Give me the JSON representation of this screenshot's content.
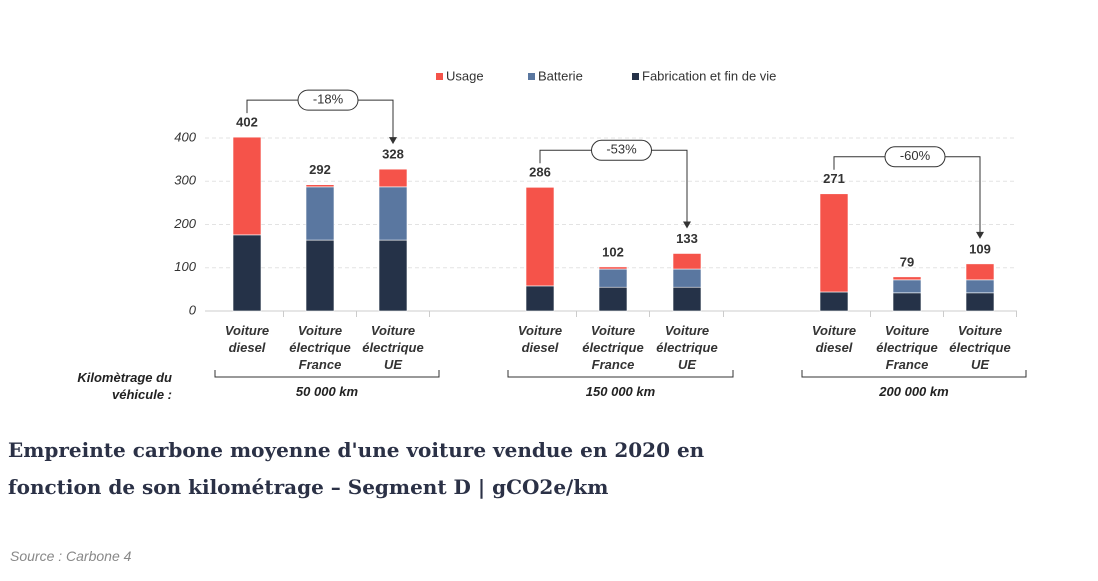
{
  "chart_data": {
    "type": "bar",
    "stacked": true,
    "title": "Empreinte carbone moyenne d'une voiture vendue en 2020 en fonction de son kilométrage – Segment D | gCO2e/km",
    "source": "Source : Carbone 4",
    "x_label": "Kilomètrage du véhicule :",
    "groups": [
      "50 000 km",
      "150 000 km",
      "200 000 km"
    ],
    "categories": [
      "Voiture diesel",
      "Voiture électrique France",
      "Voiture électrique UE",
      "Voiture diesel",
      "Voiture électrique France",
      "Voiture électrique UE",
      "Voiture diesel",
      "Voiture électrique France",
      "Voiture électrique UE"
    ],
    "series": [
      {
        "name": "Usage",
        "color": "#f5534a",
        "values": [
          226,
          5,
          41,
          228,
          5,
          36,
          227,
          7,
          37
        ]
      },
      {
        "name": "Batterie",
        "color": "#5a77a0",
        "values": [
          0,
          123,
          123,
          0,
          42,
          42,
          0,
          30,
          30
        ]
      },
      {
        "name": "Fabrication et fin de vie",
        "color": "#253248",
        "values": [
          176,
          164,
          164,
          58,
          55,
          55,
          44,
          42,
          42
        ]
      }
    ],
    "totals": [
      402,
      292,
      328,
      286,
      102,
      133,
      271,
      79,
      109
    ],
    "annotations": [
      "-18%",
      "-53%",
      "-60%"
    ],
    "ylim": [
      0,
      400
    ],
    "yticks": [
      0,
      100,
      200,
      300,
      400
    ],
    "grid": true
  }
}
